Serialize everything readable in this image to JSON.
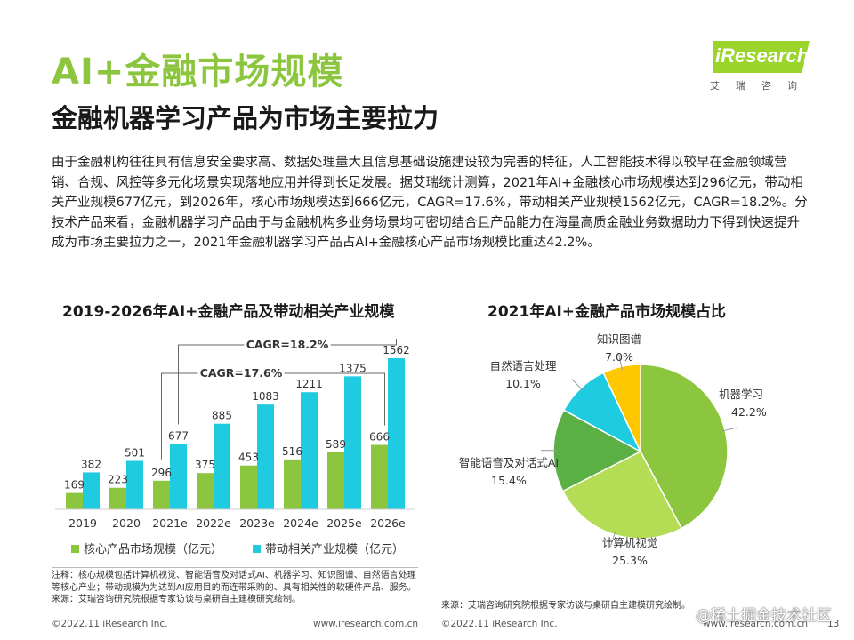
{
  "header": {
    "title": "AI+金融市场规模",
    "subtitle": "金融机器学习产品为市场主要拉力",
    "logo_brand": "iResearch",
    "logo_cn": "艾瑞咨询",
    "accent_color": "#8cc63f"
  },
  "intro": "由于金融机构往往具有信息安全要求高、数据处理量大且信息基础设施建设较为完善的特征，人工智能技术得以较早在金融领域营销、合规、风控等多元化场景实现落地应用并得到长足发展。据艾瑞统计测算，2021年AI+金融核心市场规模达到296亿元，带动相关产业规模677亿元，到2026年，核心市场规模达到666亿元，CAGR=17.6%，带动相关产业规模1562亿元，CAGR=18.2%。分技术产品来看，金融机器学习产品由于与金融机构多业务场景均可密切结合且产品能力在海量高质金融业务数据助力下得到快速提升成为市场主要拉力之一，2021年金融机器学习产品占AI+金融核心产品市场规模比重达42.2%。",
  "chart_data": [
    {
      "type": "bar",
      "title": "2019-2026年AI+金融产品及带动相关产业规模",
      "categories": [
        "2019",
        "2020",
        "2021e",
        "2022e",
        "2023e",
        "2024e",
        "2025e",
        "2026e"
      ],
      "series": [
        {
          "name": "核心产品市场规模（亿元）",
          "color": "#8cc63f",
          "values": [
            169,
            223,
            296,
            375,
            453,
            516,
            589,
            666
          ]
        },
        {
          "name": "带动相关产业规模（亿元）",
          "color": "#1ecbe1",
          "values": [
            382,
            501,
            677,
            885,
            1083,
            1211,
            1375,
            1562
          ]
        }
      ],
      "annotations": [
        "CAGR=18.2%",
        "CAGR=17.6%"
      ],
      "ylim": [
        0,
        1700
      ]
    },
    {
      "type": "pie",
      "title": "2021年AI+金融产品市场规模占比",
      "labels": [
        "机器学习",
        "计算机视觉",
        "智能语音及对话式AI",
        "自然语言处理",
        "知识图谱"
      ],
      "values": [
        42.2,
        25.3,
        15.4,
        10.1,
        7.0
      ],
      "value_labels": [
        "42.2%",
        "25.3%",
        "15.4%",
        "10.1%",
        "7.0%"
      ],
      "colors": [
        "#8cc63f",
        "#b5dc55",
        "#5aaf45",
        "#1ecbe1",
        "#ffc700"
      ]
    }
  ],
  "notes": {
    "bar_note": "注释：核心规模包括计算机视觉、智能语音及对话式AI、机器学习、知识图谱、自然语言处理等核心产业；带动规模为为达到AI应用目的而连带采购的、具有相关性的软硬件产品、服务。",
    "bar_source": "来源：艾瑞咨询研究院根据专家访谈与桌研自主建模研究绘制。",
    "pie_source": "来源：艾瑞咨询研究院根据专家访谈与桌研自主建模研究绘制。"
  },
  "footer": {
    "left_copyright": "©2022.11 iResearch Inc.",
    "left_url": "www.iresearch.com.cn",
    "right_copyright": "©2022.11 iResearch Inc.",
    "right_url": "www.iresearch.com.cn",
    "page_number": "13"
  },
  "watermark": "@稀土掘金技术社区"
}
